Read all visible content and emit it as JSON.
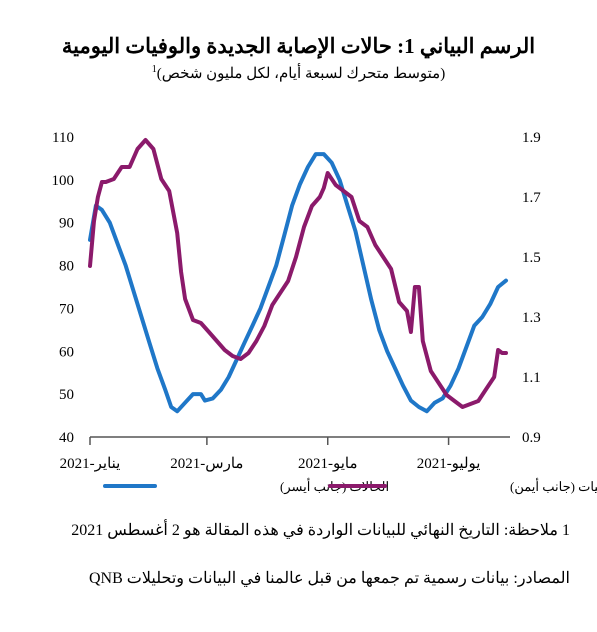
{
  "title": "الرسم البياني 1: حالات الإصابة الجديدة والوفيات اليومية",
  "subtitle": "(متوسط متحرك لسبعة أيام، لكل مليون شخص)",
  "subtitle_sup": "1",
  "note": "1 ملاحظة: التاريخ النهائي للبيانات الواردة في هذه المقالة هو 2 أغسطس 2021",
  "source": "المصادر: بيانات رسمية تم جمعها من قبل عالمنا في البيانات وتحليلات QNB",
  "colors": {
    "cases": "#1F77C8",
    "deaths": "#8B1A6B"
  },
  "chart_data": {
    "type": "line",
    "x_labels": [
      "يناير-2021",
      "مارس-2021",
      "مايو-2021",
      "يوليو-2021"
    ],
    "y_left": {
      "ticks": [
        "40",
        "50",
        "60",
        "70",
        "80",
        "90",
        "100",
        "110"
      ],
      "range": [
        40,
        110
      ]
    },
    "y_right": {
      "ticks": [
        "0.9",
        "1.1",
        "1.3",
        "1.5",
        "1.7",
        "1.9"
      ],
      "range": [
        0.9,
        1.9
      ]
    },
    "x_range_days": [
      0,
      212
    ],
    "series": [
      {
        "name": "الحالات (جانب أيسر)",
        "axis": "left",
        "points": [
          [
            0,
            86
          ],
          [
            3,
            94
          ],
          [
            6,
            93
          ],
          [
            10,
            90
          ],
          [
            14,
            85
          ],
          [
            18,
            80
          ],
          [
            22,
            74
          ],
          [
            26,
            68
          ],
          [
            30,
            62
          ],
          [
            34,
            56
          ],
          [
            38,
            51
          ],
          [
            41,
            47
          ],
          [
            44,
            46
          ],
          [
            48,
            48
          ],
          [
            52,
            50
          ],
          [
            56,
            50
          ],
          [
            58,
            48.5
          ],
          [
            62,
            49
          ],
          [
            66,
            51
          ],
          [
            70,
            54
          ],
          [
            74,
            58
          ],
          [
            78,
            62
          ],
          [
            82,
            66
          ],
          [
            86,
            70
          ],
          [
            90,
            75
          ],
          [
            94,
            80
          ],
          [
            98,
            87
          ],
          [
            102,
            94
          ],
          [
            106,
            99
          ],
          [
            110,
            103
          ],
          [
            114,
            106
          ],
          [
            118,
            106
          ],
          [
            122,
            104
          ],
          [
            126,
            100
          ],
          [
            130,
            94
          ],
          [
            134,
            88
          ],
          [
            138,
            80
          ],
          [
            142,
            72
          ],
          [
            146,
            65
          ],
          [
            150,
            60
          ],
          [
            154,
            56
          ],
          [
            158,
            52
          ],
          [
            162,
            48.5
          ],
          [
            166,
            47
          ],
          [
            170,
            46
          ],
          [
            174,
            48
          ],
          [
            178,
            49
          ],
          [
            182,
            52
          ],
          [
            186,
            56
          ],
          [
            190,
            61
          ],
          [
            194,
            66
          ],
          [
            198,
            68
          ],
          [
            202,
            71
          ],
          [
            206,
            75
          ],
          [
            210,
            76.5
          ]
        ]
      },
      {
        "name": "الوفيات (جانب أيمن)",
        "axis": "right",
        "points": [
          [
            0,
            1.47
          ],
          [
            2,
            1.62
          ],
          [
            4,
            1.7
          ],
          [
            6,
            1.75
          ],
          [
            8,
            1.75
          ],
          [
            12,
            1.76
          ],
          [
            16,
            1.8
          ],
          [
            20,
            1.8
          ],
          [
            24,
            1.86
          ],
          [
            28,
            1.89
          ],
          [
            32,
            1.86
          ],
          [
            36,
            1.76
          ],
          [
            40,
            1.72
          ],
          [
            44,
            1.58
          ],
          [
            46,
            1.45
          ],
          [
            48,
            1.36
          ],
          [
            52,
            1.29
          ],
          [
            56,
            1.28
          ],
          [
            60,
            1.25
          ],
          [
            64,
            1.22
          ],
          [
            68,
            1.19
          ],
          [
            72,
            1.17
          ],
          [
            76,
            1.16
          ],
          [
            80,
            1.18
          ],
          [
            84,
            1.22
          ],
          [
            88,
            1.27
          ],
          [
            92,
            1.34
          ],
          [
            96,
            1.38
          ],
          [
            100,
            1.42
          ],
          [
            104,
            1.5
          ],
          [
            108,
            1.6
          ],
          [
            112,
            1.67
          ],
          [
            116,
            1.7
          ],
          [
            118,
            1.73
          ],
          [
            120,
            1.78
          ],
          [
            124,
            1.74
          ],
          [
            128,
            1.72
          ],
          [
            132,
            1.7
          ],
          [
            136,
            1.62
          ],
          [
            140,
            1.6
          ],
          [
            144,
            1.54
          ],
          [
            148,
            1.5
          ],
          [
            152,
            1.46
          ],
          [
            156,
            1.35
          ],
          [
            160,
            1.32
          ],
          [
            162,
            1.25
          ],
          [
            164,
            1.4
          ],
          [
            166,
            1.4
          ],
          [
            168,
            1.22
          ],
          [
            172,
            1.12
          ],
          [
            176,
            1.08
          ],
          [
            180,
            1.04
          ],
          [
            184,
            1.02
          ],
          [
            188,
            1
          ],
          [
            192,
            1.01
          ],
          [
            196,
            1.02
          ],
          [
            200,
            1.06
          ],
          [
            204,
            1.1
          ],
          [
            206,
            1.19
          ],
          [
            208,
            1.18
          ],
          [
            210,
            1.18
          ]
        ]
      }
    ],
    "legend_placement": "bottom"
  }
}
